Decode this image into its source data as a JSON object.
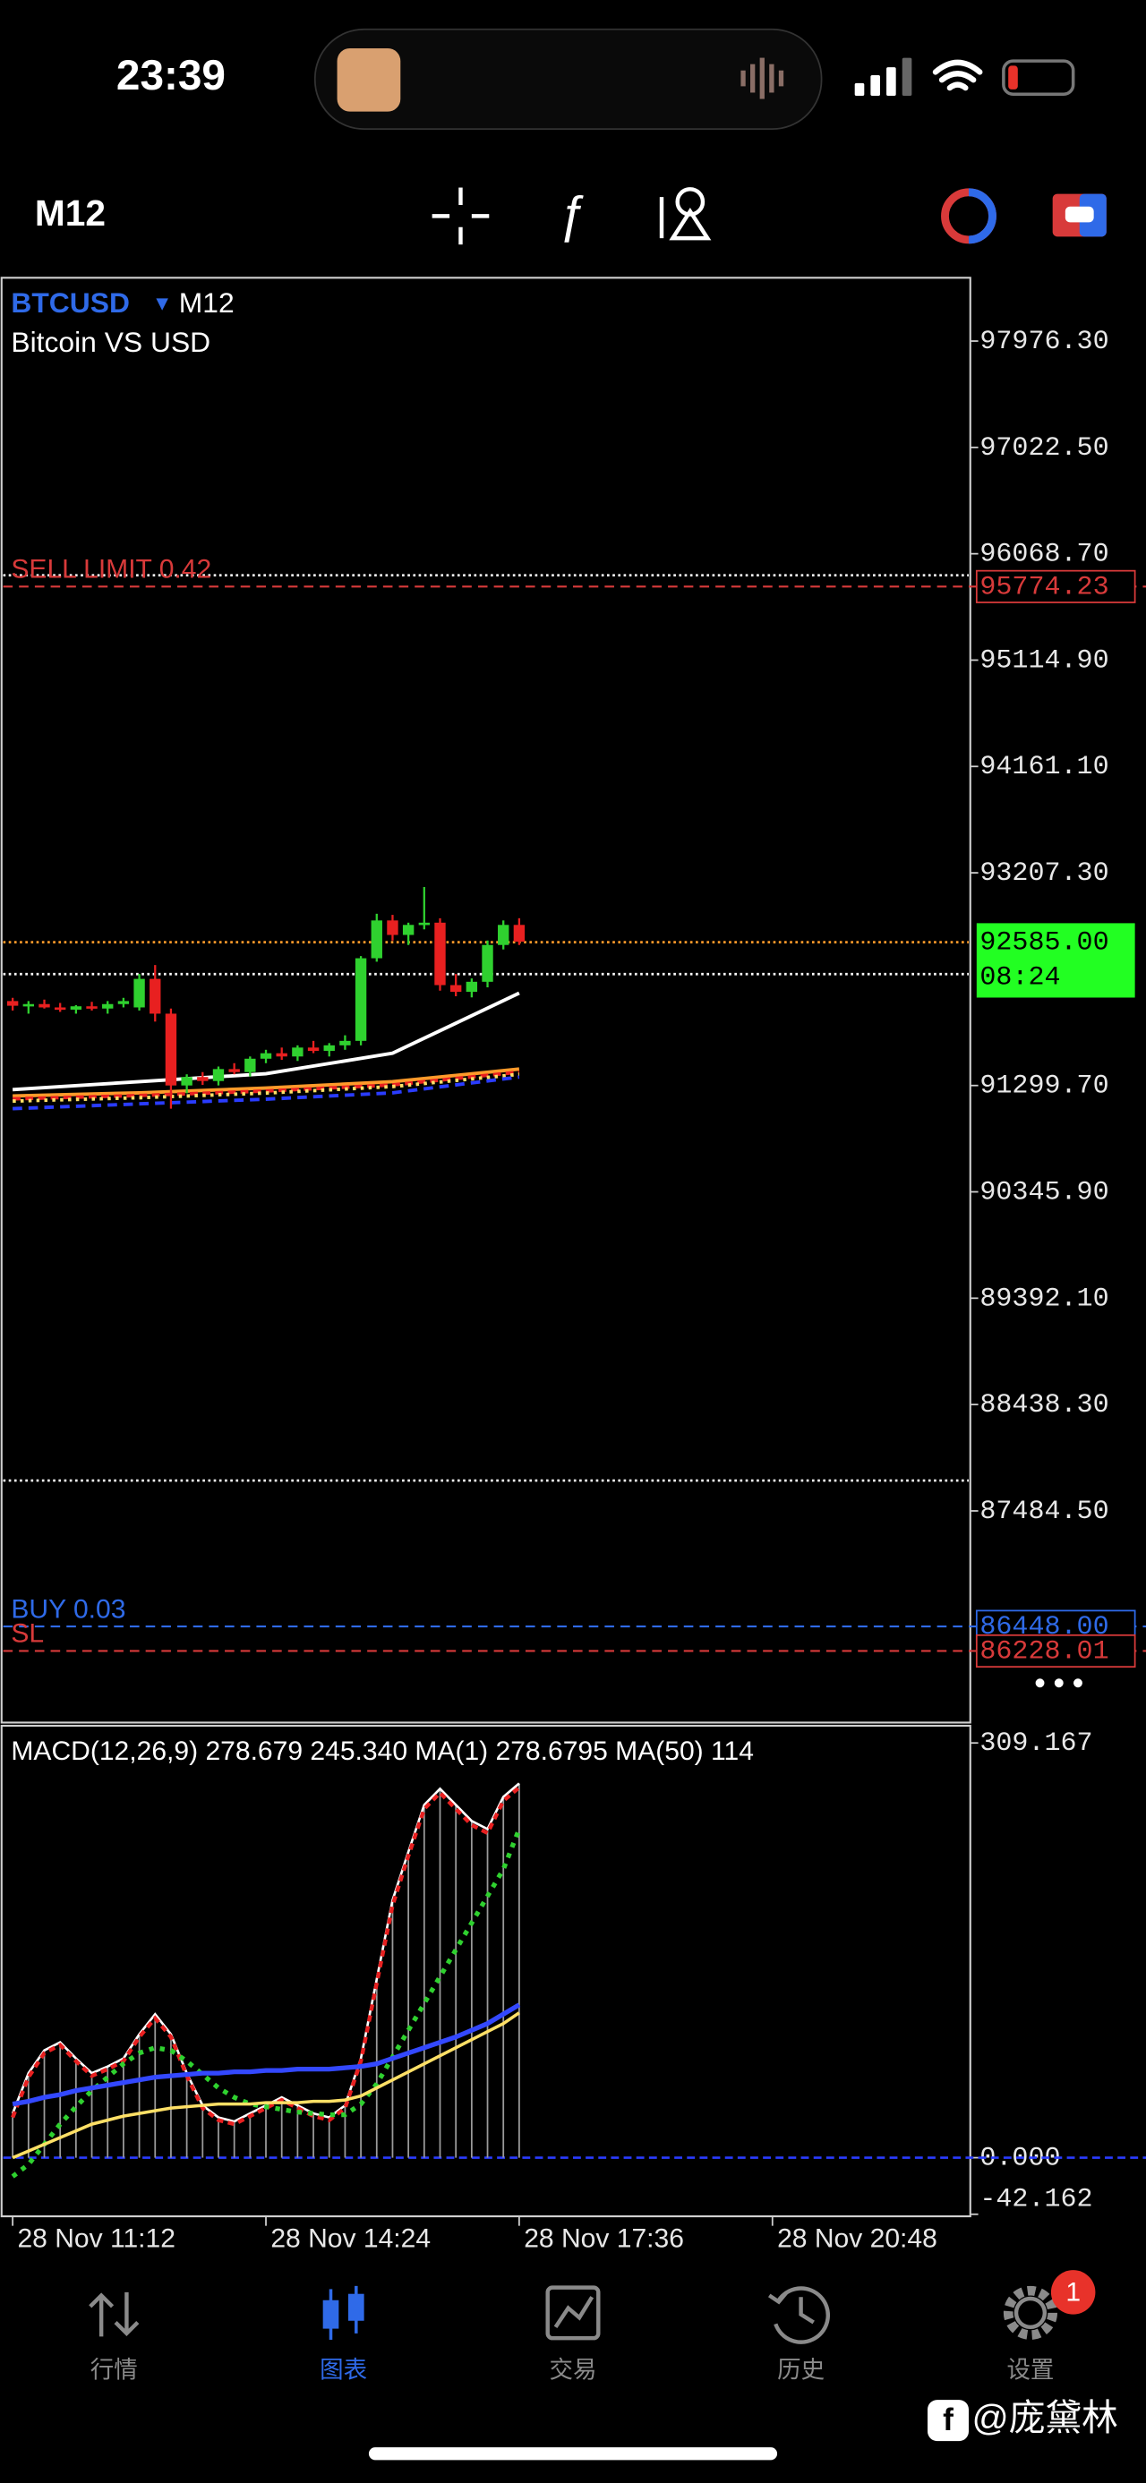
{
  "status_bar": {
    "time": "23:39"
  },
  "toolbar": {
    "timeframe": "M12"
  },
  "chart": {
    "symbol": "BTCUSD",
    "timeframe": "M12",
    "description": "Bitcoin VS USD",
    "ylim": [
      85586,
      98544
    ],
    "yticks": [
      {
        "value": 97976.3,
        "label": "97976.30"
      },
      {
        "value": 97022.5,
        "label": "97022.50"
      },
      {
        "value": 96068.7,
        "label": "96068.70"
      },
      {
        "value": 95114.9,
        "label": "95114.90"
      },
      {
        "value": 94161.1,
        "label": "94161.10"
      },
      {
        "value": 93207.3,
        "label": "93207.30"
      },
      {
        "value": 91299.7,
        "label": "91299.70"
      },
      {
        "value": 90345.9,
        "label": "90345.90"
      },
      {
        "value": 89392.1,
        "label": "89392.10"
      },
      {
        "value": 88438.3,
        "label": "88438.30"
      },
      {
        "value": 87484.5,
        "label": "87484.50"
      }
    ],
    "up_color": "#2fd12f",
    "down_color": "#e82020",
    "candles": [
      [
        92057,
        92086,
        91972,
        92015
      ],
      [
        92015,
        92057,
        91944,
        92030
      ],
      [
        92030,
        92070,
        91990,
        92000
      ],
      [
        92000,
        92040,
        91960,
        91980
      ],
      [
        91980,
        92020,
        91944,
        92010
      ],
      [
        92010,
        92050,
        91972,
        91990
      ],
      [
        91990,
        92057,
        91944,
        92030
      ],
      [
        92030,
        92086,
        92000,
        92057
      ],
      [
        92000,
        92300,
        91972,
        92256
      ],
      [
        92256,
        92380,
        91873,
        91944
      ],
      [
        91944,
        91990,
        91092,
        91300
      ],
      [
        91300,
        91400,
        91230,
        91376
      ],
      [
        91376,
        91420,
        91305,
        91340
      ],
      [
        91340,
        91470,
        91300,
        91447
      ],
      [
        91447,
        91500,
        91400,
        91420
      ],
      [
        91420,
        91560,
        91380,
        91540
      ],
      [
        91540,
        91620,
        91500,
        91589
      ],
      [
        91589,
        91640,
        91530,
        91560
      ],
      [
        91560,
        91660,
        91520,
        91640
      ],
      [
        91640,
        91700,
        91590,
        91610
      ],
      [
        91610,
        91680,
        91560,
        91660
      ],
      [
        91660,
        91750,
        91620,
        91700
      ],
      [
        91700,
        92460,
        91660,
        92441
      ],
      [
        92441,
        92840,
        92410,
        92780
      ],
      [
        92780,
        92830,
        92600,
        92650
      ],
      [
        92650,
        92760,
        92560,
        92740
      ],
      [
        92740,
        93080,
        92700,
        92760
      ],
      [
        92760,
        92800,
        92150,
        92200
      ],
      [
        92200,
        92300,
        92100,
        92140
      ],
      [
        92140,
        92260,
        92090,
        92230
      ],
      [
        92230,
        92600,
        92180,
        92560
      ],
      [
        92560,
        92780,
        92520,
        92740
      ],
      [
        92740,
        92800,
        92560,
        92590
      ]
    ],
    "ma_x": [
      0,
      8,
      16,
      24,
      32
    ],
    "moving_averages": [
      {
        "color": "#ffffff",
        "dash": "none",
        "values": [
          91263,
          91334,
          91405,
          91589,
          92128
        ]
      },
      {
        "color": "#ff9a2a",
        "dash": "none",
        "values": [
          91206,
          91234,
          91277,
          91334,
          91447
        ]
      },
      {
        "color": "#e82020",
        "dash": "5 3",
        "values": [
          91180,
          91210,
          91250,
          91305,
          91420
        ]
      },
      {
        "color": "#ffe066",
        "dash": "2 3",
        "values": [
          91160,
          91190,
          91232,
          91290,
          91400
        ]
      },
      {
        "color": "#2a3cff",
        "dash": "6 4",
        "values": [
          91092,
          91135,
          91177,
          91234,
          91376
        ]
      }
    ],
    "dotted_levels": [
      95876,
      92299,
      87757
    ],
    "bid": {
      "value": 92585.0,
      "label": "92585.00",
      "countdown": "08:24"
    },
    "orders": [
      {
        "text": "SELL LIMIT 0.42",
        "value": 95774.23,
        "label": "95774.23",
        "color": "#d83a3a"
      },
      {
        "text": "BUY 0.03",
        "value": 86448.0,
        "label": "86448.00",
        "color": "#2f6ae8"
      },
      {
        "text": "SL",
        "value": 86228.01,
        "label": "86228.01",
        "color": "#d83a3a"
      }
    ],
    "time_labels": [
      "28 Nov 11:12",
      "28 Nov 14:24",
      "28 Nov 17:36",
      "28 Nov 20:48"
    ]
  },
  "macd": {
    "header": "MACD(12,26,9) 278.679 245.340 MA(1) 278.6795 MA(50) 114",
    "ylim": [
      -43.7,
      322
    ],
    "yticks": [
      {
        "value": 309.167,
        "label": "309.167"
      },
      {
        "value": 0,
        "label": "0.000"
      },
      {
        "value": -42.162,
        "label": "-42.162"
      }
    ],
    "histogram": [
      33,
      63,
      80,
      86,
      74,
      63,
      68,
      74,
      92,
      107,
      92,
      63,
      39,
      30,
      27,
      33,
      39,
      45,
      39,
      33,
      30,
      39,
      74,
      133,
      192,
      228,
      263,
      275,
      263,
      251,
      245,
      269,
      279
    ],
    "series": [
      {
        "color": "#ffffff",
        "dash": "none",
        "width": 1.5,
        "values": [
          33,
          63,
          80,
          86,
          74,
          63,
          68,
          74,
          92,
          107,
          92,
          63,
          39,
          30,
          27,
          33,
          39,
          45,
          39,
          33,
          30,
          39,
          74,
          133,
          192,
          228,
          263,
          275,
          263,
          251,
          245,
          269,
          279
        ]
      },
      {
        "color": "#e82020",
        "dash": "4 3",
        "width": 2.5,
        "values": [
          30,
          60,
          78,
          84,
          72,
          61,
          66,
          72,
          90,
          104,
          90,
          61,
          37,
          28,
          25,
          31,
          37,
          43,
          37,
          31,
          28,
          37,
          72,
          130,
          188,
          225,
          260,
          272,
          260,
          248,
          242,
          266,
          276
        ]
      },
      {
        "color": "#2fd12f",
        "dash": "3 4",
        "width": 3,
        "values": [
          -14,
          -5,
          10,
          25,
          38,
          50,
          60,
          70,
          78,
          82,
          80,
          72,
          62,
          52,
          45,
          40,
          38,
          36,
          34,
          33,
          32,
          32,
          40,
          55,
          75,
          95,
          115,
          135,
          155,
          175,
          195,
          215,
          245
        ]
      },
      {
        "color": "#ffe066",
        "dash": "none",
        "width": 2,
        "values": [
          0,
          5,
          10,
          15,
          20,
          25,
          28,
          31,
          33,
          35,
          37,
          38,
          39,
          40,
          40,
          40,
          41,
          41,
          41,
          42,
          42,
          43,
          46,
          52,
          58,
          64,
          70,
          76,
          82,
          88,
          94,
          100,
          108
        ]
      },
      {
        "color": "#3348ff",
        "dash": "none",
        "width": 3,
        "values": [
          40,
          42,
          45,
          47,
          50,
          52,
          54,
          56,
          58,
          60,
          61,
          62,
          63,
          63,
          64,
          64,
          65,
          65,
          66,
          66,
          66,
          67,
          68,
          70,
          74,
          78,
          82,
          86,
          90,
          95,
          100,
          107,
          114
        ]
      }
    ]
  },
  "bottom_nav": [
    {
      "label": "行情"
    },
    {
      "label": "图表"
    },
    {
      "label": "交易"
    },
    {
      "label": "历史"
    },
    {
      "label": "设置"
    }
  ],
  "settings_badge": 1,
  "watermark": "@庞黛林"
}
